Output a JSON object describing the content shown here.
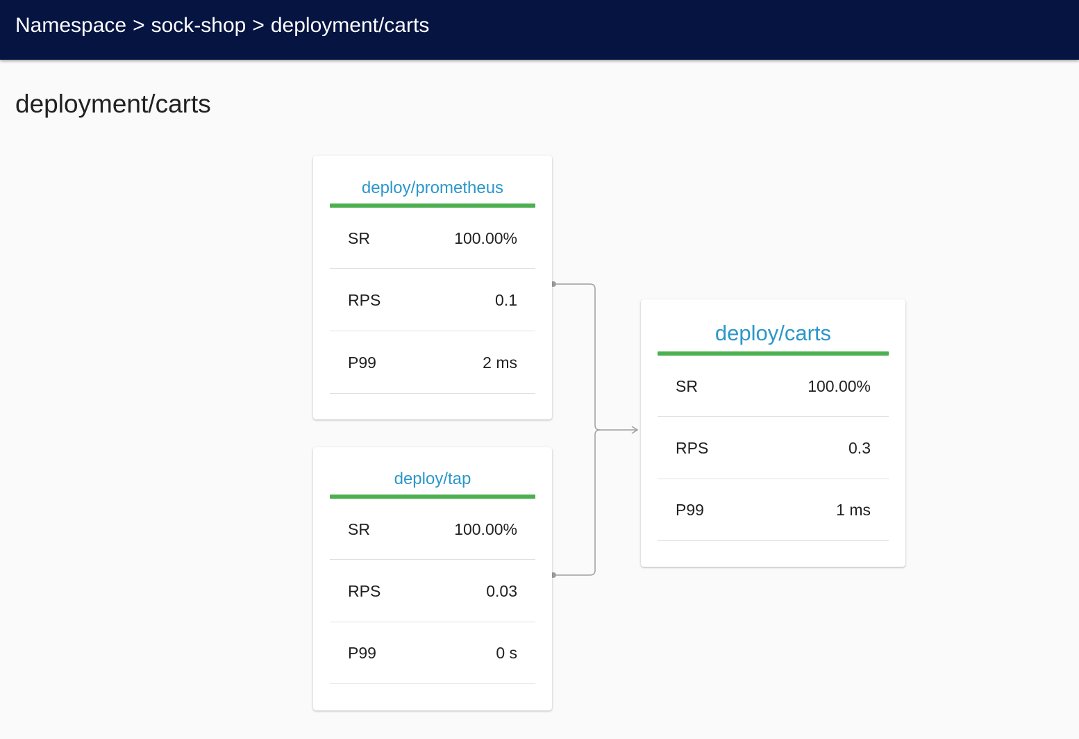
{
  "header": {
    "breadcrumb": [
      {
        "label": "Namespace"
      },
      {
        "label": "sock-shop"
      },
      {
        "label": "deployment/carts"
      }
    ],
    "separator": ">",
    "background_color": "#051441"
  },
  "page": {
    "title": "deployment/carts"
  },
  "graph": {
    "sources": [
      {
        "name": "deploy/prometheus",
        "status_color": "#4caf50",
        "metrics": [
          {
            "label": "SR",
            "value": "100.00%"
          },
          {
            "label": "RPS",
            "value": "0.1"
          },
          {
            "label": "P99",
            "value": "2 ms"
          }
        ]
      },
      {
        "name": "deploy/tap",
        "status_color": "#4caf50",
        "metrics": [
          {
            "label": "SR",
            "value": "100.00%"
          },
          {
            "label": "RPS",
            "value": "0.03"
          },
          {
            "label": "P99",
            "value": "0 s"
          }
        ]
      }
    ],
    "target": {
      "name": "deploy/carts",
      "status_color": "#4caf50",
      "metrics": [
        {
          "label": "SR",
          "value": "100.00%"
        },
        {
          "label": "RPS",
          "value": "0.3"
        },
        {
          "label": "P99",
          "value": "1 ms"
        }
      ]
    },
    "link_color": "#9e9e9e",
    "title_color": "#2b97c9"
  }
}
